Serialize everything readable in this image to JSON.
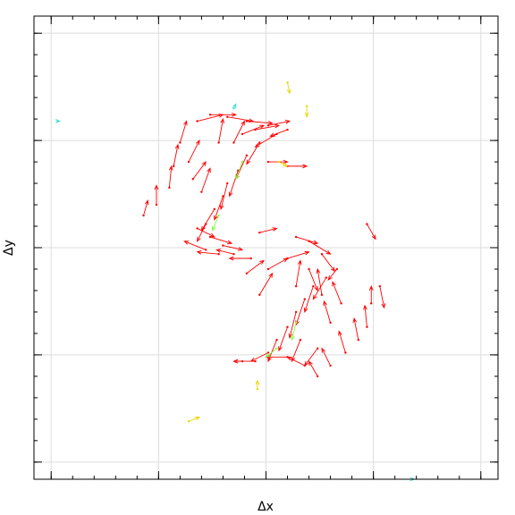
{
  "chart_data": {
    "type": "quiver",
    "xlabel": "Δx",
    "ylabel": "Δy",
    "xlim": [
      -1.08,
      1.08
    ],
    "ylim": [
      -1.08,
      1.08
    ],
    "xticks": [
      -1,
      -0.5,
      0,
      0.5,
      1
    ],
    "yticks": [
      -1,
      -0.5,
      0,
      0.5,
      1
    ],
    "xminor_ticks": [
      -1,
      -0.9,
      -0.8,
      -0.7,
      -0.6,
      -0.5,
      -0.4,
      -0.3,
      -0.2,
      -0.1,
      0,
      0.1,
      0.2,
      0.3,
      0.4,
      0.5,
      0.6,
      0.7,
      0.8,
      0.9,
      1
    ],
    "yminor_ticks": [
      -1,
      -0.9,
      -0.8,
      -0.7,
      -0.6,
      -0.5,
      -0.4,
      -0.3,
      -0.2,
      -0.1,
      0,
      0.1,
      0.2,
      0.3,
      0.4,
      0.5,
      0.6,
      0.7,
      0.8,
      0.9,
      1
    ],
    "grid": true,
    "series": [
      {
        "color": "#ff0000",
        "x": [
          -0.32,
          -0.26,
          -0.18,
          -0.09,
          0.01,
          0.1,
          0.05,
          -0.03,
          -0.09,
          -0.13,
          -0.18,
          -0.2,
          -0.24,
          -0.28,
          -0.32,
          -0.26,
          -0.2,
          -0.15,
          -0.22,
          -0.07,
          -0.4,
          -0.43,
          -0.45,
          -0.51,
          -0.57,
          -0.36,
          -0.34,
          -0.3,
          -0.11,
          -0.05,
          -0.15,
          0.01,
          -0.03,
          -0.09,
          -0.28,
          -0.22,
          0.14,
          0.2,
          0.26,
          0.33,
          0.28,
          0.22,
          0.18,
          0.14,
          0.1,
          0.05,
          0.01,
          -0.05,
          -0.11,
          0.1,
          0.18,
          0.24,
          0.3,
          0.37,
          0.43,
          0.47,
          0.49,
          0.53,
          0.47,
          0.35,
          0.3,
          0.01,
          0.1,
          0.2,
          0.16,
          0.24,
          0.1,
          -0.03,
          0.26,
          0.14
        ],
        "y": [
          0.59,
          0.62,
          0.61,
          0.59,
          0.57,
          0.55,
          0.53,
          0.49,
          0.43,
          0.36,
          0.3,
          0.24,
          0.18,
          0.11,
          0.09,
          0.05,
          0.01,
          -0.03,
          -0.03,
          -0.05,
          0.49,
          0.38,
          0.28,
          0.2,
          0.15,
          0.4,
          0.32,
          0.26,
          0.53,
          0.55,
          0.49,
          0.4,
          0.07,
          -0.12,
          -0.01,
          0.49,
          0.05,
          0.03,
          -0.03,
          -0.1,
          -0.14,
          -0.18,
          -0.24,
          -0.3,
          -0.37,
          -0.43,
          -0.49,
          -0.53,
          -0.53,
          -0.51,
          -0.55,
          -0.6,
          -0.55,
          -0.49,
          -0.43,
          -0.37,
          -0.26,
          -0.18,
          0.11,
          -0.26,
          -0.35,
          -0.1,
          -0.05,
          -0.1,
          -0.43,
          -0.47,
          0.38,
          -0.22,
          -0.22,
          -0.18
        ],
        "u": [
          0.12,
          0.12,
          0.12,
          0.12,
          0.1,
          -0.08,
          -0.1,
          -0.06,
          -0.05,
          -0.04,
          -0.03,
          -0.04,
          -0.06,
          -0.04,
          0.08,
          0.1,
          0.09,
          -0.08,
          -0.1,
          -0.1,
          0.03,
          0.02,
          0.01,
          0,
          0.02,
          0.05,
          0.06,
          0.04,
          0.1,
          0.11,
          0.05,
          0.09,
          0.08,
          0.08,
          -0.1,
          0.02,
          0.1,
          0.1,
          0.06,
          -0.04,
          -0.06,
          -0.04,
          -0.04,
          -0.03,
          -0.04,
          -0.04,
          -0.08,
          -0.1,
          -0.04,
          -0.1,
          -0.08,
          -0.04,
          -0.04,
          -0.03,
          -0.02,
          -0.01,
          0,
          0.02,
          0.04,
          -0.04,
          -0.03,
          0.09,
          0.1,
          0.04,
          -0.04,
          -0.06,
          0.09,
          0.06,
          -0.02,
          0.02
        ],
        "v": [
          0.03,
          0,
          -0.02,
          -0.01,
          0.02,
          -0.03,
          -0.06,
          -0.1,
          -0.11,
          -0.12,
          -0.12,
          -0.11,
          -0.1,
          -0.08,
          -0.04,
          -0.03,
          -0.02,
          0.02,
          0.01,
          0,
          0.1,
          0.1,
          0.1,
          0.09,
          0.07,
          0.1,
          0.08,
          0.11,
          0.04,
          0.02,
          0.1,
          0,
          0.02,
          0.06,
          0.04,
          0.11,
          -0.03,
          -0.06,
          -0.08,
          -0.05,
          -0.1,
          -0.12,
          -0.12,
          -0.12,
          -0.11,
          -0.1,
          -0.04,
          0,
          0,
          0,
          0.04,
          0.07,
          0.08,
          0.1,
          0.1,
          0.1,
          0.08,
          -0.1,
          -0.07,
          0.1,
          0.1,
          0.05,
          0.03,
          -0.1,
          -0.1,
          -0.08,
          0,
          0.1,
          0.12,
          0.12
        ]
      },
      {
        "color": "#e6d800",
        "x": [
          0.1,
          0.19,
          -0.36,
          -0.04,
          0.06
        ],
        "y": [
          0.77,
          0.66,
          -0.81,
          -0.66,
          0.4
        ],
        "u": [
          0.01,
          0,
          0.05,
          0,
          0.04
        ],
        "v": [
          -0.05,
          -0.05,
          0.02,
          0.04,
          -0.02
        ]
      },
      {
        "color": "#40e0d0",
        "x": [
          -0.97,
          -0.15,
          0.68
        ],
        "y": [
          0.59,
          0.65,
          -1.08
        ],
        "u": [
          0.01,
          0.01,
          0.01
        ],
        "v": [
          0,
          0.02,
          0
        ]
      },
      {
        "color": "#7fff40",
        "x": [
          -0.11,
          0.05,
          0.14,
          -0.22
        ],
        "y": [
          0.4,
          -0.47,
          -0.35,
          0.15
        ],
        "u": [
          -0.03,
          -0.05,
          -0.02,
          -0.03
        ],
        "v": [
          -0.08,
          -0.04,
          -0.08,
          -0.07
        ]
      }
    ]
  }
}
